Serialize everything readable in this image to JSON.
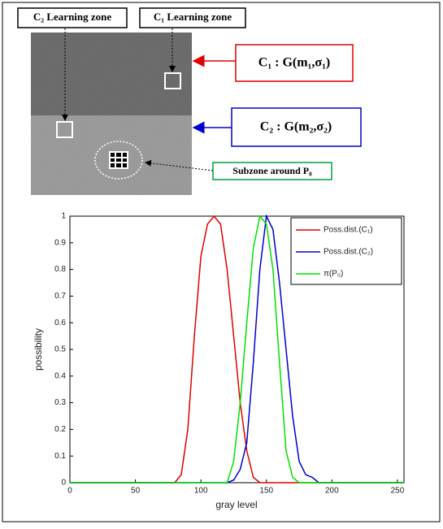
{
  "diagram": {
    "c2_zone_label": "C₂ Learning zone",
    "c1_zone_label": "C₁ Learning zone",
    "c1_model": "C₁ : G(m₁,σ₁)",
    "c2_model": "C₂ : G(m₂,σ₂)",
    "subzone_label": "Subzone around P₀"
  },
  "chart_data": {
    "type": "line",
    "xlabel": "gray level",
    "ylabel": "possibility",
    "x": [
      0,
      80,
      85,
      90,
      95,
      100,
      105,
      110,
      115,
      120,
      125,
      130,
      135,
      140,
      145,
      150,
      155,
      160,
      165,
      170,
      175,
      180,
      185,
      190,
      255
    ],
    "series": [
      {
        "name": "Poss.dist.(C₁)",
        "color": "#e00000",
        "values": [
          0,
          0,
          0.03,
          0.2,
          0.55,
          0.85,
          0.97,
          1,
          0.97,
          0.8,
          0.55,
          0.3,
          0.12,
          0.02,
          0,
          0,
          0,
          0,
          0,
          0,
          0,
          0,
          0,
          0,
          0
        ]
      },
      {
        "name": "Poss.dist.(C₂)",
        "color": "#0000d0",
        "values": [
          0,
          0,
          0,
          0,
          0,
          0,
          0,
          0,
          0,
          0,
          0.01,
          0.05,
          0.15,
          0.45,
          0.8,
          1,
          0.95,
          0.75,
          0.5,
          0.25,
          0.08,
          0.03,
          0.02,
          0,
          0
        ]
      },
      {
        "name": "π(P₀)",
        "color": "#00e000",
        "values": [
          0,
          0,
          0,
          0,
          0,
          0,
          0,
          0,
          0,
          0,
          0.08,
          0.3,
          0.6,
          0.88,
          1,
          0.97,
          0.8,
          0.45,
          0.12,
          0.02,
          0,
          0,
          0,
          0,
          0
        ]
      }
    ],
    "xlim": [
      0,
      255
    ],
    "ylim": [
      0,
      1
    ],
    "xticks": [
      0,
      50,
      100,
      150,
      200,
      250
    ],
    "yticks": [
      0,
      0.1,
      0.2,
      0.3,
      0.4,
      0.5,
      0.6,
      0.7,
      0.8,
      0.9,
      1
    ],
    "legend": "upper right"
  }
}
